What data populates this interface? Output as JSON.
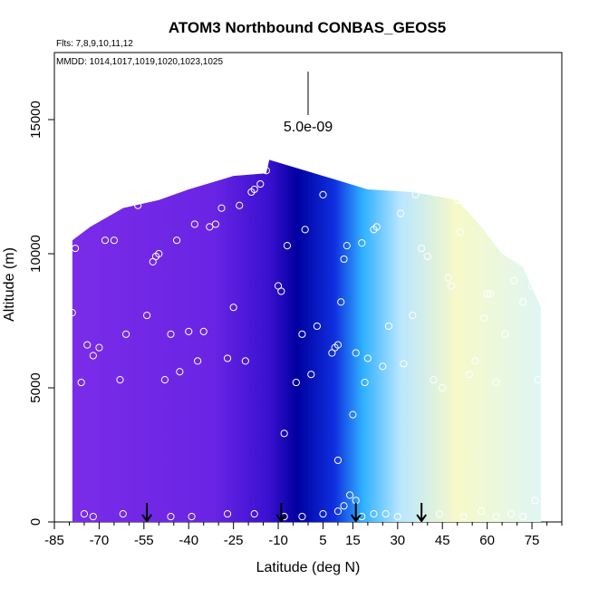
{
  "chart_data": {
    "type": "heatmap",
    "title": "ATOM3 Northbound CONBAS_GEOS5",
    "flights_label": "Flts: 7,8,9,10,11,12",
    "dates_label": "MMDD: 1014,1017,1019,1020,1023,1025",
    "xlabel": "Latitude (deg N)",
    "ylabel": "Altitude (m)",
    "xlim": [
      -85,
      85
    ],
    "ylim": [
      0,
      17500
    ],
    "x_ticks": [
      -85,
      -70,
      -55,
      -40,
      -25,
      -10,
      5,
      15,
      30,
      45,
      60,
      75
    ],
    "y_ticks": [
      0,
      5000,
      10000,
      15000
    ],
    "scale_label": "5.0e-09",
    "colors": {
      "dark_blue": "#0000a0",
      "purple": "#7a2ce8",
      "violet": "#8a3af0",
      "cyan": "#2fb0ff",
      "light_blue": "#b9e6ff",
      "pale_yellow": "#f7f9c8",
      "pale_cyan": "#dff6f4",
      "point_outline": "#ffffff"
    },
    "arrows_lat": [
      -54,
      -9,
      16,
      38
    ],
    "top_altitude_profile": [
      {
        "lat": -79,
        "alt": 10500
      },
      {
        "lat": -73,
        "alt": 11000
      },
      {
        "lat": -62,
        "alt": 11700
      },
      {
        "lat": -50,
        "alt": 12000
      },
      {
        "lat": -40,
        "alt": 12400
      },
      {
        "lat": -25,
        "alt": 12900
      },
      {
        "lat": -14,
        "alt": 13000
      },
      {
        "lat": -13,
        "alt": 13500
      },
      {
        "lat": 5,
        "alt": 12900
      },
      {
        "lat": 20,
        "alt": 12400
      },
      {
        "lat": 35,
        "alt": 12300
      },
      {
        "lat": 50,
        "alt": 12000
      },
      {
        "lat": 58,
        "alt": 11000
      },
      {
        "lat": 65,
        "alt": 10000
      },
      {
        "lat": 72,
        "alt": 9500
      },
      {
        "lat": 78,
        "alt": 8000
      }
    ],
    "sample_points": [
      {
        "lat": -79,
        "alt": 7800
      },
      {
        "lat": -78,
        "alt": 10200
      },
      {
        "lat": -76,
        "alt": 5200
      },
      {
        "lat": -74,
        "alt": 6600
      },
      {
        "lat": -72,
        "alt": 6200
      },
      {
        "lat": -70,
        "alt": 6500
      },
      {
        "lat": -68,
        "alt": 10500
      },
      {
        "lat": -65,
        "alt": 10500
      },
      {
        "lat": -63,
        "alt": 5300
      },
      {
        "lat": -61,
        "alt": 7000
      },
      {
        "lat": -57,
        "alt": 11800
      },
      {
        "lat": -54,
        "alt": 7700
      },
      {
        "lat": -52,
        "alt": 9700
      },
      {
        "lat": -51,
        "alt": 9900
      },
      {
        "lat": -50,
        "alt": 10000
      },
      {
        "lat": -48,
        "alt": 5300
      },
      {
        "lat": -46,
        "alt": 7000
      },
      {
        "lat": -44,
        "alt": 10500
      },
      {
        "lat": -43,
        "alt": 5600
      },
      {
        "lat": -40,
        "alt": 7100
      },
      {
        "lat": -38,
        "alt": 11100
      },
      {
        "lat": -37,
        "alt": 6000
      },
      {
        "lat": -35,
        "alt": 7100
      },
      {
        "lat": -33,
        "alt": 11000
      },
      {
        "lat": -31,
        "alt": 11100
      },
      {
        "lat": -29,
        "alt": 11700
      },
      {
        "lat": -27,
        "alt": 6100
      },
      {
        "lat": -25,
        "alt": 8000
      },
      {
        "lat": -23,
        "alt": 11800
      },
      {
        "lat": -21,
        "alt": 6000
      },
      {
        "lat": -19,
        "alt": 12300
      },
      {
        "lat": -18,
        "alt": 12400
      },
      {
        "lat": -16,
        "alt": 12600
      },
      {
        "lat": -14,
        "alt": 13100
      },
      {
        "lat": -10,
        "alt": 8800
      },
      {
        "lat": -9,
        "alt": 8600
      },
      {
        "lat": -8,
        "alt": 3300
      },
      {
        "lat": -7,
        "alt": 10300
      },
      {
        "lat": -4,
        "alt": 5200
      },
      {
        "lat": -2,
        "alt": 7000
      },
      {
        "lat": -1,
        "alt": 10900
      },
      {
        "lat": 1,
        "alt": 5500
      },
      {
        "lat": 3,
        "alt": 7300
      },
      {
        "lat": 5,
        "alt": 12200
      },
      {
        "lat": 8,
        "alt": 6300
      },
      {
        "lat": 9,
        "alt": 6500
      },
      {
        "lat": 10,
        "alt": 6600
      },
      {
        "lat": 11,
        "alt": 8200
      },
      {
        "lat": 12,
        "alt": 9800
      },
      {
        "lat": 13,
        "alt": 10300
      },
      {
        "lat": 14,
        "alt": 12900
      },
      {
        "lat": 15,
        "alt": 4000
      },
      {
        "lat": 16,
        "alt": 6300
      },
      {
        "lat": 18,
        "alt": 10400
      },
      {
        "lat": 19,
        "alt": 5200
      },
      {
        "lat": 20,
        "alt": 6100
      },
      {
        "lat": 22,
        "alt": 10900
      },
      {
        "lat": 23,
        "alt": 11000
      },
      {
        "lat": 25,
        "alt": 5800
      },
      {
        "lat": 27,
        "alt": 7300
      },
      {
        "lat": 31,
        "alt": 11500
      },
      {
        "lat": 32,
        "alt": 5900
      },
      {
        "lat": 35,
        "alt": 7700
      },
      {
        "lat": 36,
        "alt": 12200
      },
      {
        "lat": 38,
        "alt": 10200
      },
      {
        "lat": 40,
        "alt": 9900
      },
      {
        "lat": 42,
        "alt": 5300
      },
      {
        "lat": 45,
        "alt": 5000
      },
      {
        "lat": 47,
        "alt": 9100
      },
      {
        "lat": 48,
        "alt": 8800
      },
      {
        "lat": 50,
        "alt": 12000
      },
      {
        "lat": 51,
        "alt": 10800
      },
      {
        "lat": 54,
        "alt": 5500
      },
      {
        "lat": 56,
        "alt": 6000
      },
      {
        "lat": 59,
        "alt": 7600
      },
      {
        "lat": 60,
        "alt": 8500
      },
      {
        "lat": 61,
        "alt": 8500
      },
      {
        "lat": 63,
        "alt": 5200
      },
      {
        "lat": 66,
        "alt": 7000
      },
      {
        "lat": 69,
        "alt": 9000
      },
      {
        "lat": 72,
        "alt": 8200
      },
      {
        "lat": 75,
        "alt": 8800
      },
      {
        "lat": 77,
        "alt": 5300
      },
      {
        "lat": -75,
        "alt": 300
      },
      {
        "lat": -72,
        "alt": 200
      },
      {
        "lat": -62,
        "alt": 300
      },
      {
        "lat": -46,
        "alt": 200
      },
      {
        "lat": -39,
        "alt": 200
      },
      {
        "lat": -27,
        "alt": 300
      },
      {
        "lat": -18,
        "alt": 300
      },
      {
        "lat": -8,
        "alt": 200
      },
      {
        "lat": -2,
        "alt": 200
      },
      {
        "lat": 5,
        "alt": 300
      },
      {
        "lat": 10,
        "alt": 400
      },
      {
        "lat": 12,
        "alt": 600
      },
      {
        "lat": 14,
        "alt": 1000
      },
      {
        "lat": 16,
        "alt": 800
      },
      {
        "lat": 18,
        "alt": 200
      },
      {
        "lat": 22,
        "alt": 300
      },
      {
        "lat": 26,
        "alt": 300
      },
      {
        "lat": 30,
        "alt": 200
      },
      {
        "lat": 38,
        "alt": 200
      },
      {
        "lat": 44,
        "alt": 300
      },
      {
        "lat": 52,
        "alt": 200
      },
      {
        "lat": 58,
        "alt": 400
      },
      {
        "lat": 63,
        "alt": 200
      },
      {
        "lat": 68,
        "alt": 300
      },
      {
        "lat": 72,
        "alt": 200
      },
      {
        "lat": 76,
        "alt": 800
      },
      {
        "lat": 10,
        "alt": 2300
      }
    ]
  }
}
